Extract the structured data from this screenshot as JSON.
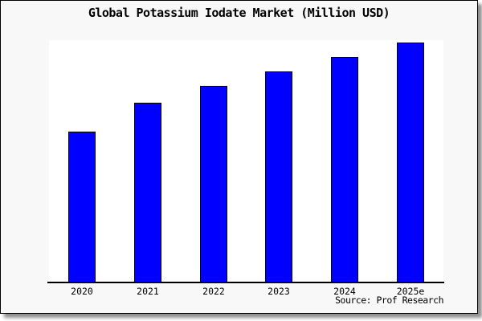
{
  "title": "Global Potassium Iodate Market (Million USD)",
  "source": "Source: Prof Research",
  "colors": {
    "bar_fill": "#0000ff",
    "bar_edge": "#000000",
    "card_background": "#f8f8f8",
    "plot_background": "#ffffff",
    "axis": "#000000",
    "text": "#000000"
  },
  "chart_data": {
    "type": "bar",
    "title": "Global Potassium Iodate Market (Million USD)",
    "categories": [
      "2020",
      "2021",
      "2022",
      "2023",
      "2024",
      "2025e"
    ],
    "values": [
      63,
      75,
      82,
      88,
      94,
      100
    ],
    "xlabel": "",
    "ylabel": "",
    "ylim": [
      0,
      101
    ],
    "y_axis_ticks_shown": false,
    "grid": false,
    "legend_position": "none"
  }
}
